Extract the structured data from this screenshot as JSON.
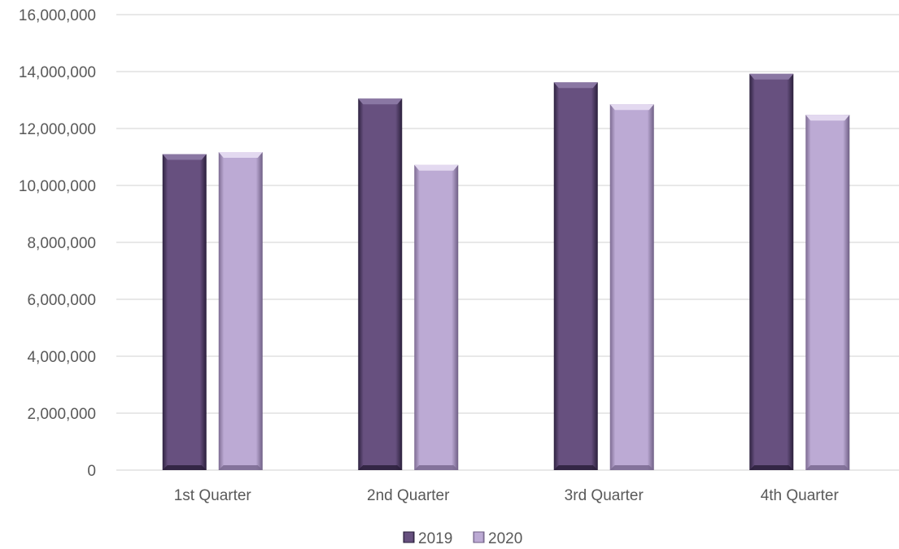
{
  "chart_data": {
    "type": "bar",
    "categories": [
      "1st Quarter",
      "2nd Quarter",
      "3rd Quarter",
      "4th Quarter"
    ],
    "series": [
      {
        "name": "2019",
        "values": [
          11100000,
          13050000,
          13620000,
          13920000
        ],
        "color": "#67507f"
      },
      {
        "name": "2020",
        "values": [
          11170000,
          10720000,
          12850000,
          12480000
        ],
        "color": "#bcaad4"
      }
    ],
    "ylim": [
      0,
      16000000
    ],
    "yticks": [
      0,
      2000000,
      4000000,
      6000000,
      8000000,
      10000000,
      12000000,
      14000000,
      16000000
    ],
    "ytick_labels": [
      "0",
      "2,000,000",
      "4,000,000",
      "6,000,000",
      "8,000,000",
      "10,000,000",
      "12,000,000",
      "14,000,000",
      "16,000,000"
    ],
    "grid": true,
    "legend_position": "bottom"
  }
}
